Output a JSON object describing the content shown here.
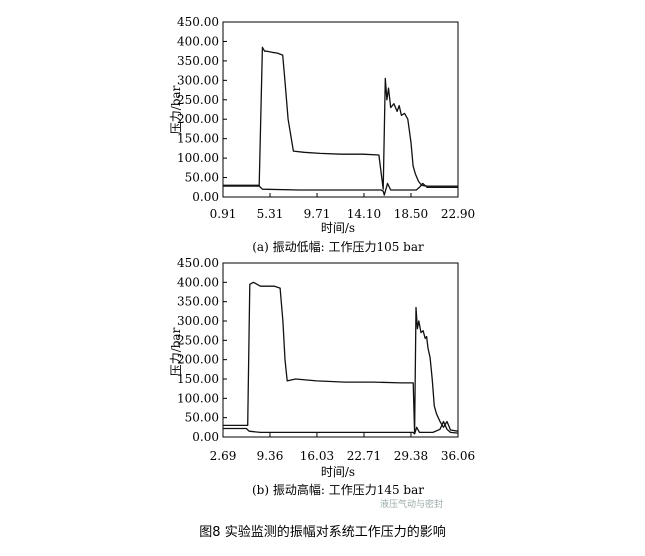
{
  "chart_data": [
    {
      "type": "line",
      "caption": "(a)  振动低幅: 工作压力105 bar",
      "xlabel": "时间/s",
      "ylabel": "压力/bar",
      "xlim": [
        0.91,
        22.9
      ],
      "ylim": [
        0,
        450
      ],
      "x_ticks": [
        "0.91",
        "5.31",
        "9.71",
        "14.10",
        "18.50",
        "22.90"
      ],
      "y_ticks": [
        "0.00",
        "50.00",
        "100.00",
        "150.00",
        "200.00",
        "250.00",
        "300.00",
        "350.00",
        "400.00",
        "450.00"
      ],
      "grid": false,
      "series": [
        {
          "x": [
            0.91,
            4.0,
            4.3,
            4.6,
            4.8,
            5.0,
            5.5,
            6.0,
            6.5,
            6.7,
            7.0,
            7.5,
            8.5,
            10.0,
            12.0,
            14.0,
            15.5,
            15.9,
            16.1,
            16.25,
            16.4,
            16.6,
            16.9,
            17.2,
            17.4,
            17.6,
            17.9,
            18.2,
            18.5,
            18.7,
            18.9,
            19.2,
            19.5,
            20.0,
            21.5,
            22.9
          ],
          "y": [
            30,
            30,
            30,
            385,
            375,
            375,
            372,
            370,
            365,
            300,
            200,
            118,
            115,
            112,
            110,
            110,
            108,
            20,
            305,
            250,
            280,
            230,
            240,
            220,
            235,
            210,
            215,
            200,
            140,
            80,
            60,
            40,
            30,
            28,
            28,
            28
          ]
        },
        {
          "x": [
            0.91,
            4.0,
            4.3,
            4.6,
            8.0,
            12.0,
            15.7,
            15.9,
            16.0,
            16.3,
            16.6,
            18.5,
            19.0,
            19.3,
            19.6,
            20.0,
            22.9
          ],
          "y": [
            28,
            28,
            28,
            20,
            18,
            18,
            18,
            15,
            5,
            35,
            18,
            18,
            18,
            25,
            35,
            25,
            25
          ]
        }
      ]
    },
    {
      "type": "line",
      "caption": "(b)  振动高幅: 工作压力145 bar",
      "xlabel": "时间/s",
      "ylabel": "压力/bar",
      "xlim": [
        2.69,
        36.06
      ],
      "ylim": [
        0,
        450
      ],
      "x_ticks": [
        "2.69",
        "9.36",
        "16.03",
        "22.71",
        "29.38",
        "36.06"
      ],
      "y_ticks": [
        "0.00",
        "50.00",
        "100.00",
        "150.00",
        "200.00",
        "250.00",
        "300.00",
        "350.00",
        "400.00",
        "450.00"
      ],
      "grid": false,
      "series": [
        {
          "x": [
            2.69,
            6.0,
            6.2,
            6.5,
            7.0,
            8.0,
            9.0,
            10.0,
            10.8,
            11.2,
            11.5,
            11.8,
            13.0,
            16.0,
            20.0,
            24.0,
            28.0,
            29.7,
            29.9,
            30.1,
            30.3,
            30.5,
            30.8,
            31.1,
            31.4,
            31.6,
            31.8,
            32.1,
            32.4,
            32.7,
            33.0,
            33.5,
            34.0,
            34.5,
            35.0,
            36.06
          ],
          "y": [
            30,
            30,
            30,
            395,
            400,
            390,
            390,
            390,
            385,
            300,
            200,
            145,
            150,
            145,
            142,
            142,
            140,
            140,
            10,
            335,
            280,
            300,
            270,
            275,
            255,
            260,
            230,
            205,
            150,
            80,
            60,
            40,
            25,
            40,
            18,
            15
          ]
        },
        {
          "x": [
            2.69,
            6.0,
            6.4,
            8.0,
            12.0,
            20.0,
            28.0,
            29.7,
            29.9,
            30.2,
            30.6,
            32.5,
            33.5,
            34.0,
            34.5,
            35.0,
            36.06
          ],
          "y": [
            22,
            22,
            15,
            12,
            12,
            12,
            12,
            12,
            8,
            25,
            12,
            12,
            20,
            40,
            20,
            12,
            10
          ]
        }
      ]
    }
  ],
  "figure_caption": "图8     实验监测的振幅对系统工作压力的影响",
  "watermark": "液压气动与密封"
}
